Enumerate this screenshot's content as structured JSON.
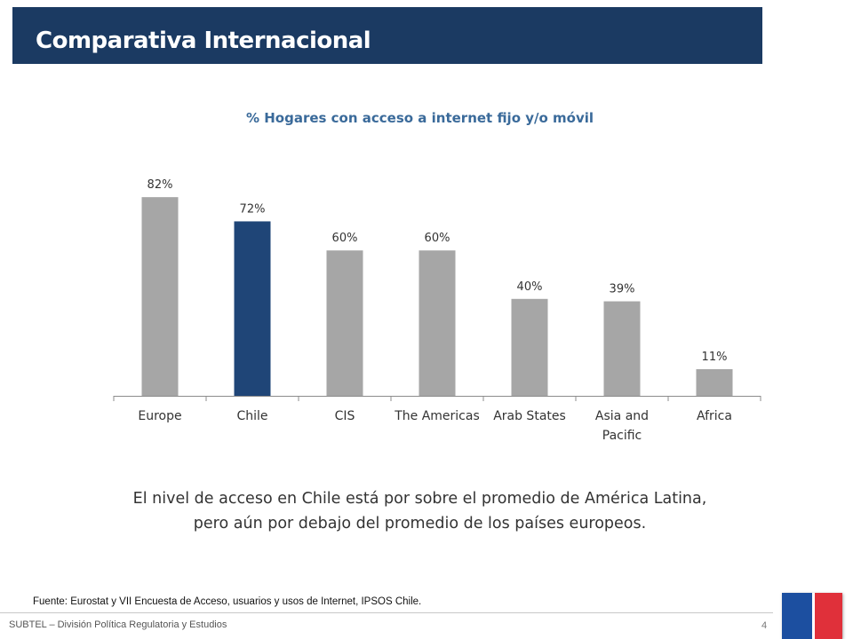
{
  "header": {
    "title": "Comparativa Internacional"
  },
  "chart_data": {
    "type": "bar",
    "title": "% Hogares con acceso a internet fijo y/o móvil",
    "categories": [
      "Europe",
      "Chile",
      "CIS",
      "The Americas",
      "Arab States",
      "Asia and Pacific",
      "Africa"
    ],
    "values": [
      82,
      72,
      60,
      60,
      40,
      39,
      11
    ],
    "value_labels": [
      "82%",
      "72%",
      "60%",
      "60%",
      "40%",
      "39%",
      "11%"
    ],
    "ylim": [
      0,
      90
    ],
    "grid": false,
    "legend": "none",
    "highlight_category": "Chile",
    "colors": {
      "default": "#a6a6a6",
      "highlight": "#1f4577"
    }
  },
  "summary": {
    "line1": "El nivel de acceso en Chile está por sobre el promedio de América Latina,",
    "line2": "pero aún por debajo del promedio de los países europeos."
  },
  "footer": {
    "source": "Fuente: Eurostat y VII Encuesta de Acceso, usuarios y usos de Internet, IPSOS Chile.",
    "organization": "SUBTEL – División Política Regulatoria y Estudios",
    "page_number": "4"
  }
}
